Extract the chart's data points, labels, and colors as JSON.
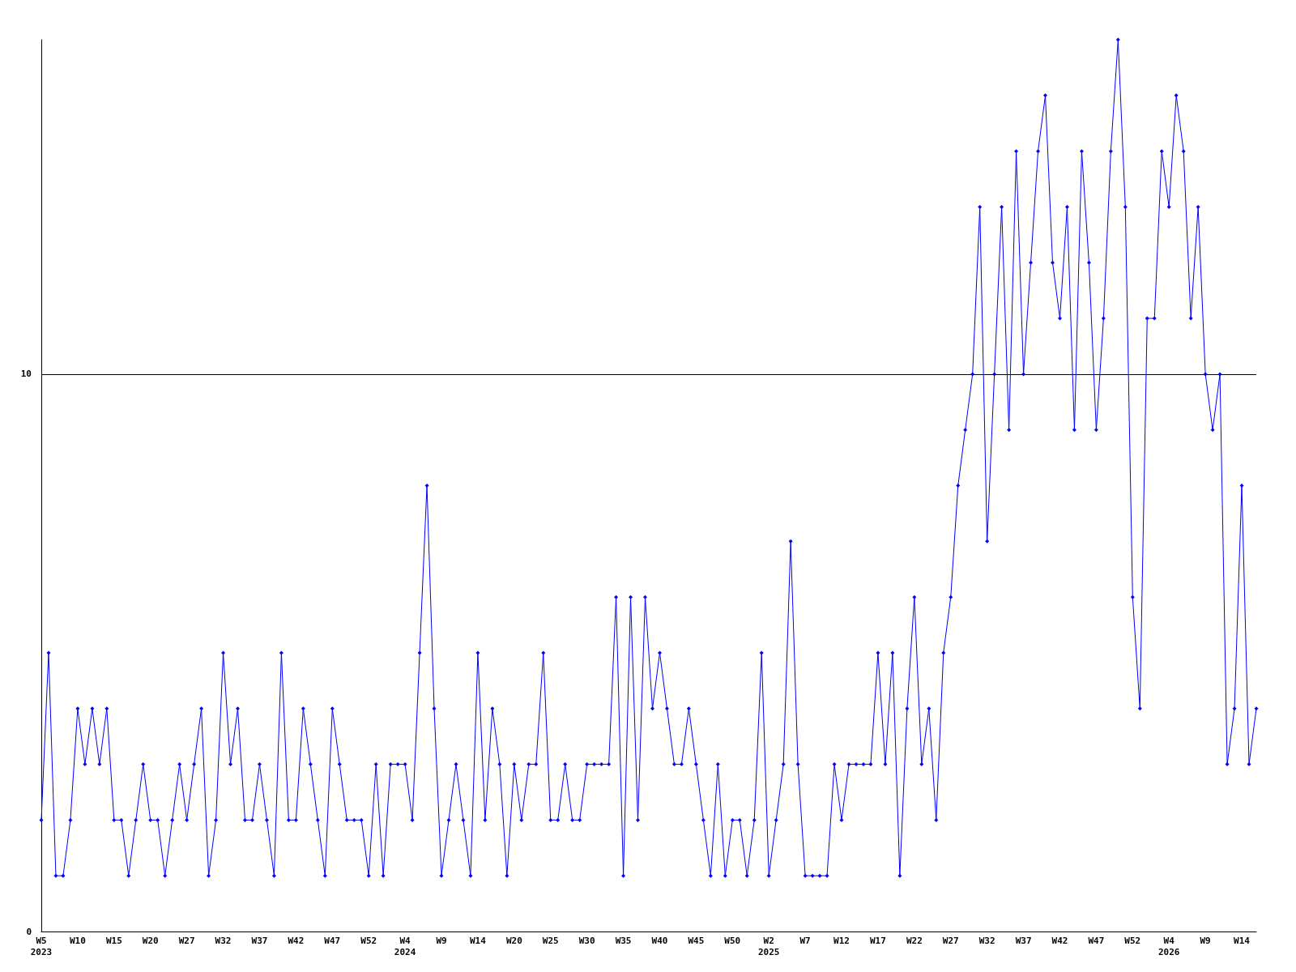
{
  "chart_data": {
    "type": "line",
    "categories": [
      "W5\n2023",
      null,
      null,
      null,
      null,
      "W10",
      null,
      null,
      null,
      null,
      "W15",
      null,
      null,
      null,
      null,
      "W20",
      null,
      null,
      null,
      null,
      "W27",
      null,
      null,
      null,
      null,
      "W32",
      null,
      null,
      null,
      null,
      "W37",
      null,
      null,
      null,
      null,
      "W42",
      null,
      null,
      null,
      null,
      "W47",
      null,
      null,
      null,
      null,
      "W52",
      null,
      null,
      null,
      null,
      "W4\n2024",
      null,
      null,
      null,
      null,
      "W9",
      null,
      null,
      null,
      null,
      "W14",
      null,
      null,
      null,
      null,
      "W20",
      null,
      null,
      null,
      null,
      "W25",
      null,
      null,
      null,
      null,
      "W30",
      null,
      null,
      null,
      null,
      "W35",
      null,
      null,
      null,
      null,
      "W40",
      null,
      null,
      null,
      null,
      "W45",
      null,
      null,
      null,
      null,
      "W50",
      null,
      null,
      null,
      null,
      "W2\n2025",
      null,
      null,
      null,
      null,
      "W7",
      null,
      null,
      null,
      null,
      "W12",
      null,
      null,
      null,
      null,
      "W17",
      null,
      null,
      null,
      null,
      "W22",
      null,
      null,
      null,
      null,
      "W27",
      null,
      null,
      null,
      null,
      "W32",
      null,
      null,
      null,
      null,
      "W37",
      null,
      null,
      null,
      null,
      "W42",
      null,
      null,
      null,
      null,
      "W47",
      null,
      null,
      null,
      null,
      "W52",
      null,
      null,
      null,
      null,
      "W4\n2026",
      null,
      null,
      null,
      null,
      "W9",
      null,
      null,
      null,
      null,
      "W14",
      null,
      null
    ],
    "series": [
      {
        "color": "#0000ff",
        "values": [
          2,
          5,
          1,
          1,
          2,
          4,
          3,
          4,
          3,
          4,
          2,
          2,
          1,
          2,
          3,
          2,
          2,
          1,
          2,
          3,
          2,
          3,
          4,
          1,
          2,
          5,
          3,
          4,
          2,
          2,
          3,
          2,
          1,
          5,
          2,
          2,
          4,
          3,
          2,
          1,
          4,
          3,
          2,
          2,
          2,
          1,
          3,
          1,
          3,
          3,
          3,
          2,
          5,
          8,
          4,
          1,
          2,
          3,
          2,
          1,
          5,
          2,
          4,
          3,
          1,
          3,
          2,
          3,
          3,
          5,
          2,
          2,
          3,
          2,
          2,
          3,
          3,
          3,
          3,
          6,
          1,
          6,
          2,
          6,
          4,
          5,
          4,
          3,
          3,
          4,
          3,
          2,
          1,
          3,
          1,
          2,
          2,
          1,
          2,
          5,
          1,
          2,
          3,
          7,
          3,
          1,
          1,
          1,
          1,
          3,
          2,
          3,
          3,
          3,
          3,
          5,
          3,
          5,
          1,
          4,
          6,
          3,
          4,
          2,
          5,
          6,
          8,
          9,
          10,
          13,
          7,
          10,
          13,
          9,
          14,
          10,
          12,
          14,
          15,
          12,
          11,
          13,
          9,
          14,
          12,
          9,
          11,
          14,
          16,
          13,
          6,
          4,
          11,
          11,
          14,
          13,
          15,
          14,
          11,
          13,
          10,
          9,
          10,
          3,
          4,
          8,
          3,
          4
        ]
      }
    ],
    "ylim": [
      0,
      16
    ],
    "yticks": [
      0,
      10
    ],
    "grid": "y",
    "marker": "diamond",
    "line_style": "solid"
  }
}
